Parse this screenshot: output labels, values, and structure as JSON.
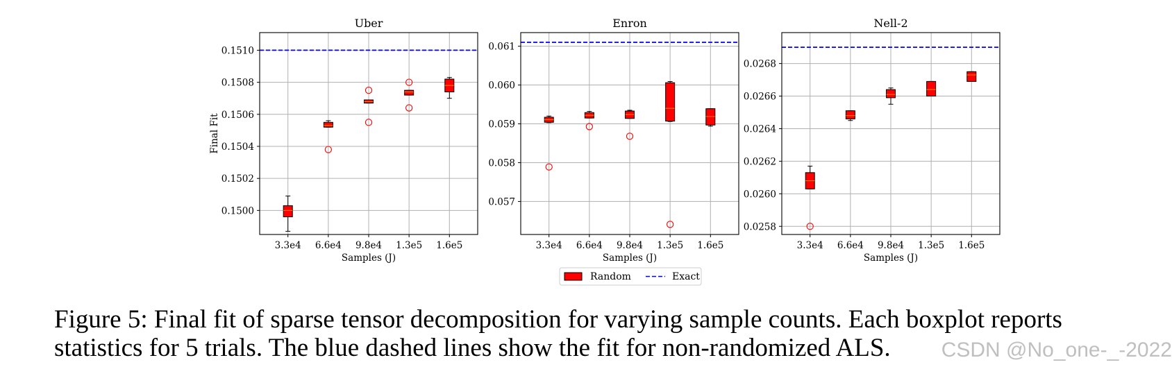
{
  "legend": {
    "random_label": "Random",
    "exact_label": "Exact"
  },
  "caption": {
    "line1": "Figure 5: Final fit of sparse tensor decomposition for varying sample counts. Each boxplot reports",
    "line2": "statistics for 5 trials. The blue dashed lines show the fit for non-randomized ALS."
  },
  "watermark": "CSDN @No_one-_-2022",
  "colors": {
    "box": "#ff0000",
    "exact": "#0000ff",
    "grid": "#b0b0b0",
    "outlier": "#ff0000"
  },
  "chart_data": [
    {
      "type": "boxplot",
      "title": "Uber",
      "xlabel": "Samples (J)",
      "ylabel": "Final Fit",
      "categories": [
        "3.3e4",
        "6.6e4",
        "9.8e4",
        "1.3e5",
        "1.6e5"
      ],
      "ylim": [
        0.14985,
        0.15111
      ],
      "yticks": [
        0.15,
        0.1502,
        0.1504,
        0.1506,
        0.1508,
        0.151
      ],
      "ytick_labels": [
        "0.1500",
        "0.1502",
        "0.1504",
        "0.1506",
        "0.1508",
        "0.1510"
      ],
      "exact": 0.151,
      "boxes": [
        {
          "whislo": 0.14987,
          "q1": 0.14996,
          "med": 0.15,
          "q3": 0.15003,
          "whishi": 0.15009,
          "fliers": []
        },
        {
          "whislo": 0.15052,
          "q1": 0.15052,
          "med": 0.15053,
          "q3": 0.15055,
          "whishi": 0.15056,
          "fliers": [
            0.15038
          ]
        },
        {
          "whislo": 0.15067,
          "q1": 0.15067,
          "med": 0.15068,
          "q3": 0.15069,
          "whishi": 0.15069,
          "fliers": [
            0.15075,
            0.15055
          ]
        },
        {
          "whislo": 0.15072,
          "q1": 0.15072,
          "med": 0.15074,
          "q3": 0.15075,
          "whishi": 0.15075,
          "fliers": [
            0.1508,
            0.15064
          ]
        },
        {
          "whislo": 0.1507,
          "q1": 0.15074,
          "med": 0.15078,
          "q3": 0.15082,
          "whishi": 0.15083,
          "fliers": []
        }
      ]
    },
    {
      "type": "boxplot",
      "title": "Enron",
      "xlabel": "Samples (J)",
      "ylabel": "",
      "categories": [
        "3.3e4",
        "6.6e4",
        "9.8e4",
        "1.3e5",
        "1.6e5"
      ],
      "ylim": [
        0.05615,
        0.06135
      ],
      "yticks": [
        0.057,
        0.058,
        0.059,
        0.06,
        0.061
      ],
      "ytick_labels": [
        "0.057",
        "0.058",
        "0.059",
        "0.060",
        "0.061"
      ],
      "exact": 0.0611,
      "boxes": [
        {
          "whislo": 0.05903,
          "q1": 0.05904,
          "med": 0.05911,
          "q3": 0.05917,
          "whishi": 0.0592,
          "fliers": [
            0.05789
          ]
        },
        {
          "whislo": 0.05915,
          "q1": 0.05915,
          "med": 0.05922,
          "q3": 0.05929,
          "whishi": 0.05932,
          "fliers": [
            0.05893
          ]
        },
        {
          "whislo": 0.05914,
          "q1": 0.05914,
          "med": 0.05924,
          "q3": 0.05933,
          "whishi": 0.05935,
          "fliers": [
            0.05868
          ]
        },
        {
          "whislo": 0.05906,
          "q1": 0.05907,
          "med": 0.0594,
          "q3": 0.06006,
          "whishi": 0.06009,
          "fliers": [
            0.05641
          ]
        },
        {
          "whislo": 0.05894,
          "q1": 0.05897,
          "med": 0.05919,
          "q3": 0.05939,
          "whishi": 0.05939,
          "fliers": []
        }
      ]
    },
    {
      "type": "boxplot",
      "title": "Nell-2",
      "xlabel": "Samples (J)",
      "ylabel": "",
      "categories": [
        "3.3e4",
        "6.6e4",
        "9.8e4",
        "1.3e5",
        "1.6e5"
      ],
      "ylim": [
        0.02575,
        0.02699
      ],
      "yticks": [
        0.0258,
        0.026,
        0.0262,
        0.0264,
        0.0266,
        0.0268
      ],
      "ytick_labels": [
        "0.0258",
        "0.0260",
        "0.0262",
        "0.0264",
        "0.0266",
        "0.0268"
      ],
      "exact": 0.0269,
      "boxes": [
        {
          "whislo": 0.02603,
          "q1": 0.02603,
          "med": 0.02608,
          "q3": 0.02613,
          "whishi": 0.02617,
          "fliers": [
            0.0258
          ]
        },
        {
          "whislo": 0.02645,
          "q1": 0.02646,
          "med": 0.02648,
          "q3": 0.02651,
          "whishi": 0.02651,
          "fliers": []
        },
        {
          "whislo": 0.02655,
          "q1": 0.02659,
          "med": 0.02661,
          "q3": 0.02664,
          "whishi": 0.02665,
          "fliers": []
        },
        {
          "whislo": 0.0266,
          "q1": 0.0266,
          "med": 0.02664,
          "q3": 0.02669,
          "whishi": 0.02669,
          "fliers": []
        },
        {
          "whislo": 0.02669,
          "q1": 0.02669,
          "med": 0.02673,
          "q3": 0.02675,
          "whishi": 0.02675,
          "fliers": []
        }
      ]
    }
  ]
}
